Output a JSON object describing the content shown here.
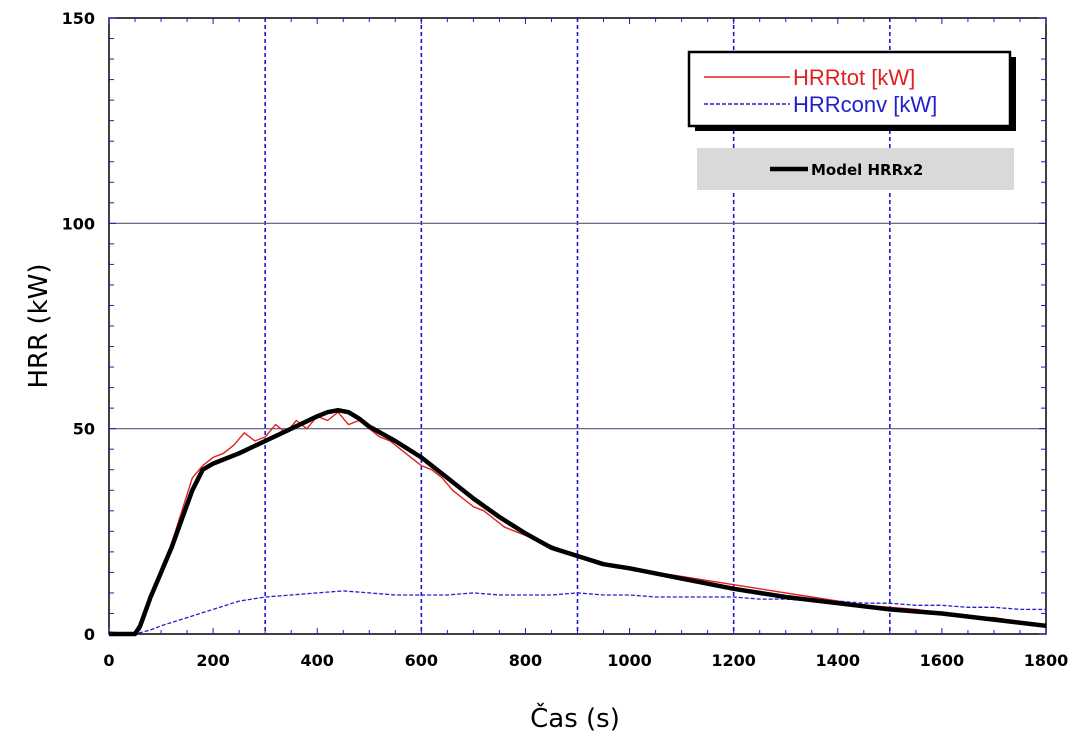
{
  "chart_data": {
    "type": "line",
    "xlabel": "Čas (s)",
    "ylabel": "HRR (kW)",
    "xlim": [
      0,
      1800
    ],
    "ylim": [
      0,
      150
    ],
    "x_ticks": [
      0,
      200,
      400,
      600,
      800,
      1000,
      1200,
      1400,
      1600,
      1800
    ],
    "y_ticks": [
      0,
      50,
      100,
      150
    ],
    "vertical_gridlines": [
      300,
      600,
      900,
      1200,
      1500
    ],
    "horizontal_gridlines": [
      50,
      100
    ],
    "legend": {
      "placement": "top-right"
    },
    "series": [
      {
        "name": "HRRtot [kW]",
        "color": "#e02020",
        "style": "solid-thin",
        "x": [
          0,
          40,
          60,
          80,
          100,
          120,
          140,
          160,
          180,
          200,
          220,
          240,
          260,
          280,
          300,
          320,
          340,
          360,
          380,
          400,
          420,
          440,
          460,
          480,
          500,
          520,
          540,
          560,
          580,
          600,
          620,
          640,
          660,
          680,
          700,
          720,
          740,
          760,
          780,
          800,
          820,
          840,
          860,
          880,
          900,
          920,
          940,
          960,
          980,
          1000,
          1050,
          1100,
          1150,
          1200,
          1250,
          1300,
          1350,
          1400,
          1450,
          1500,
          1550,
          1600,
          1650,
          1700,
          1750,
          1800
        ],
        "y": [
          0.5,
          0,
          1,
          8,
          16,
          22,
          30,
          38,
          41,
          43,
          44,
          46,
          49,
          47,
          48,
          51,
          49,
          52,
          50,
          53,
          52,
          54,
          51,
          52,
          50,
          48,
          47,
          45,
          43,
          41,
          40,
          38,
          35,
          33,
          31,
          30,
          28,
          26,
          25,
          24,
          23,
          22,
          21,
          20,
          19,
          18,
          17,
          16.5,
          16,
          16,
          15,
          14,
          13,
          12,
          11,
          10,
          9,
          8,
          7,
          6.5,
          6,
          5,
          4,
          4,
          3,
          2
        ]
      },
      {
        "name": "HRRconv [kW]",
        "color": "#2020cc",
        "style": "dashed",
        "x": [
          0,
          50,
          80,
          100,
          150,
          200,
          250,
          300,
          350,
          400,
          450,
          500,
          550,
          600,
          650,
          700,
          750,
          800,
          850,
          900,
          950,
          1000,
          1050,
          1100,
          1150,
          1200,
          1250,
          1300,
          1350,
          1400,
          1450,
          1500,
          1550,
          1600,
          1650,
          1700,
          1750,
          1800
        ],
        "y": [
          0,
          0,
          1,
          2,
          4,
          6,
          8,
          9,
          9.5,
          10,
          10.5,
          10,
          9.5,
          9.5,
          9.5,
          10,
          9.5,
          9.5,
          9.5,
          10,
          9.5,
          9.5,
          9,
          9,
          9,
          9,
          8.5,
          8.5,
          8,
          8,
          7.5,
          7.5,
          7,
          7,
          6.5,
          6.5,
          6,
          6
        ]
      },
      {
        "name": "Model HRRx2",
        "color": "#000000",
        "style": "solid-thick",
        "x": [
          0,
          50,
          60,
          80,
          100,
          120,
          140,
          160,
          180,
          200,
          250,
          300,
          350,
          400,
          420,
          440,
          460,
          480,
          500,
          550,
          600,
          650,
          700,
          750,
          800,
          850,
          900,
          950,
          1000,
          1100,
          1200,
          1300,
          1400,
          1500,
          1600,
          1700,
          1800
        ],
        "y": [
          0,
          0,
          2,
          9,
          15,
          21,
          28,
          35,
          40,
          41.5,
          44,
          47,
          50,
          53,
          54,
          54.5,
          54,
          52.5,
          50.5,
          47,
          43,
          38,
          33,
          28.5,
          24.5,
          21,
          19,
          17,
          16,
          13.5,
          11,
          9,
          7.5,
          6,
          5,
          3.5,
          2
        ]
      }
    ]
  }
}
